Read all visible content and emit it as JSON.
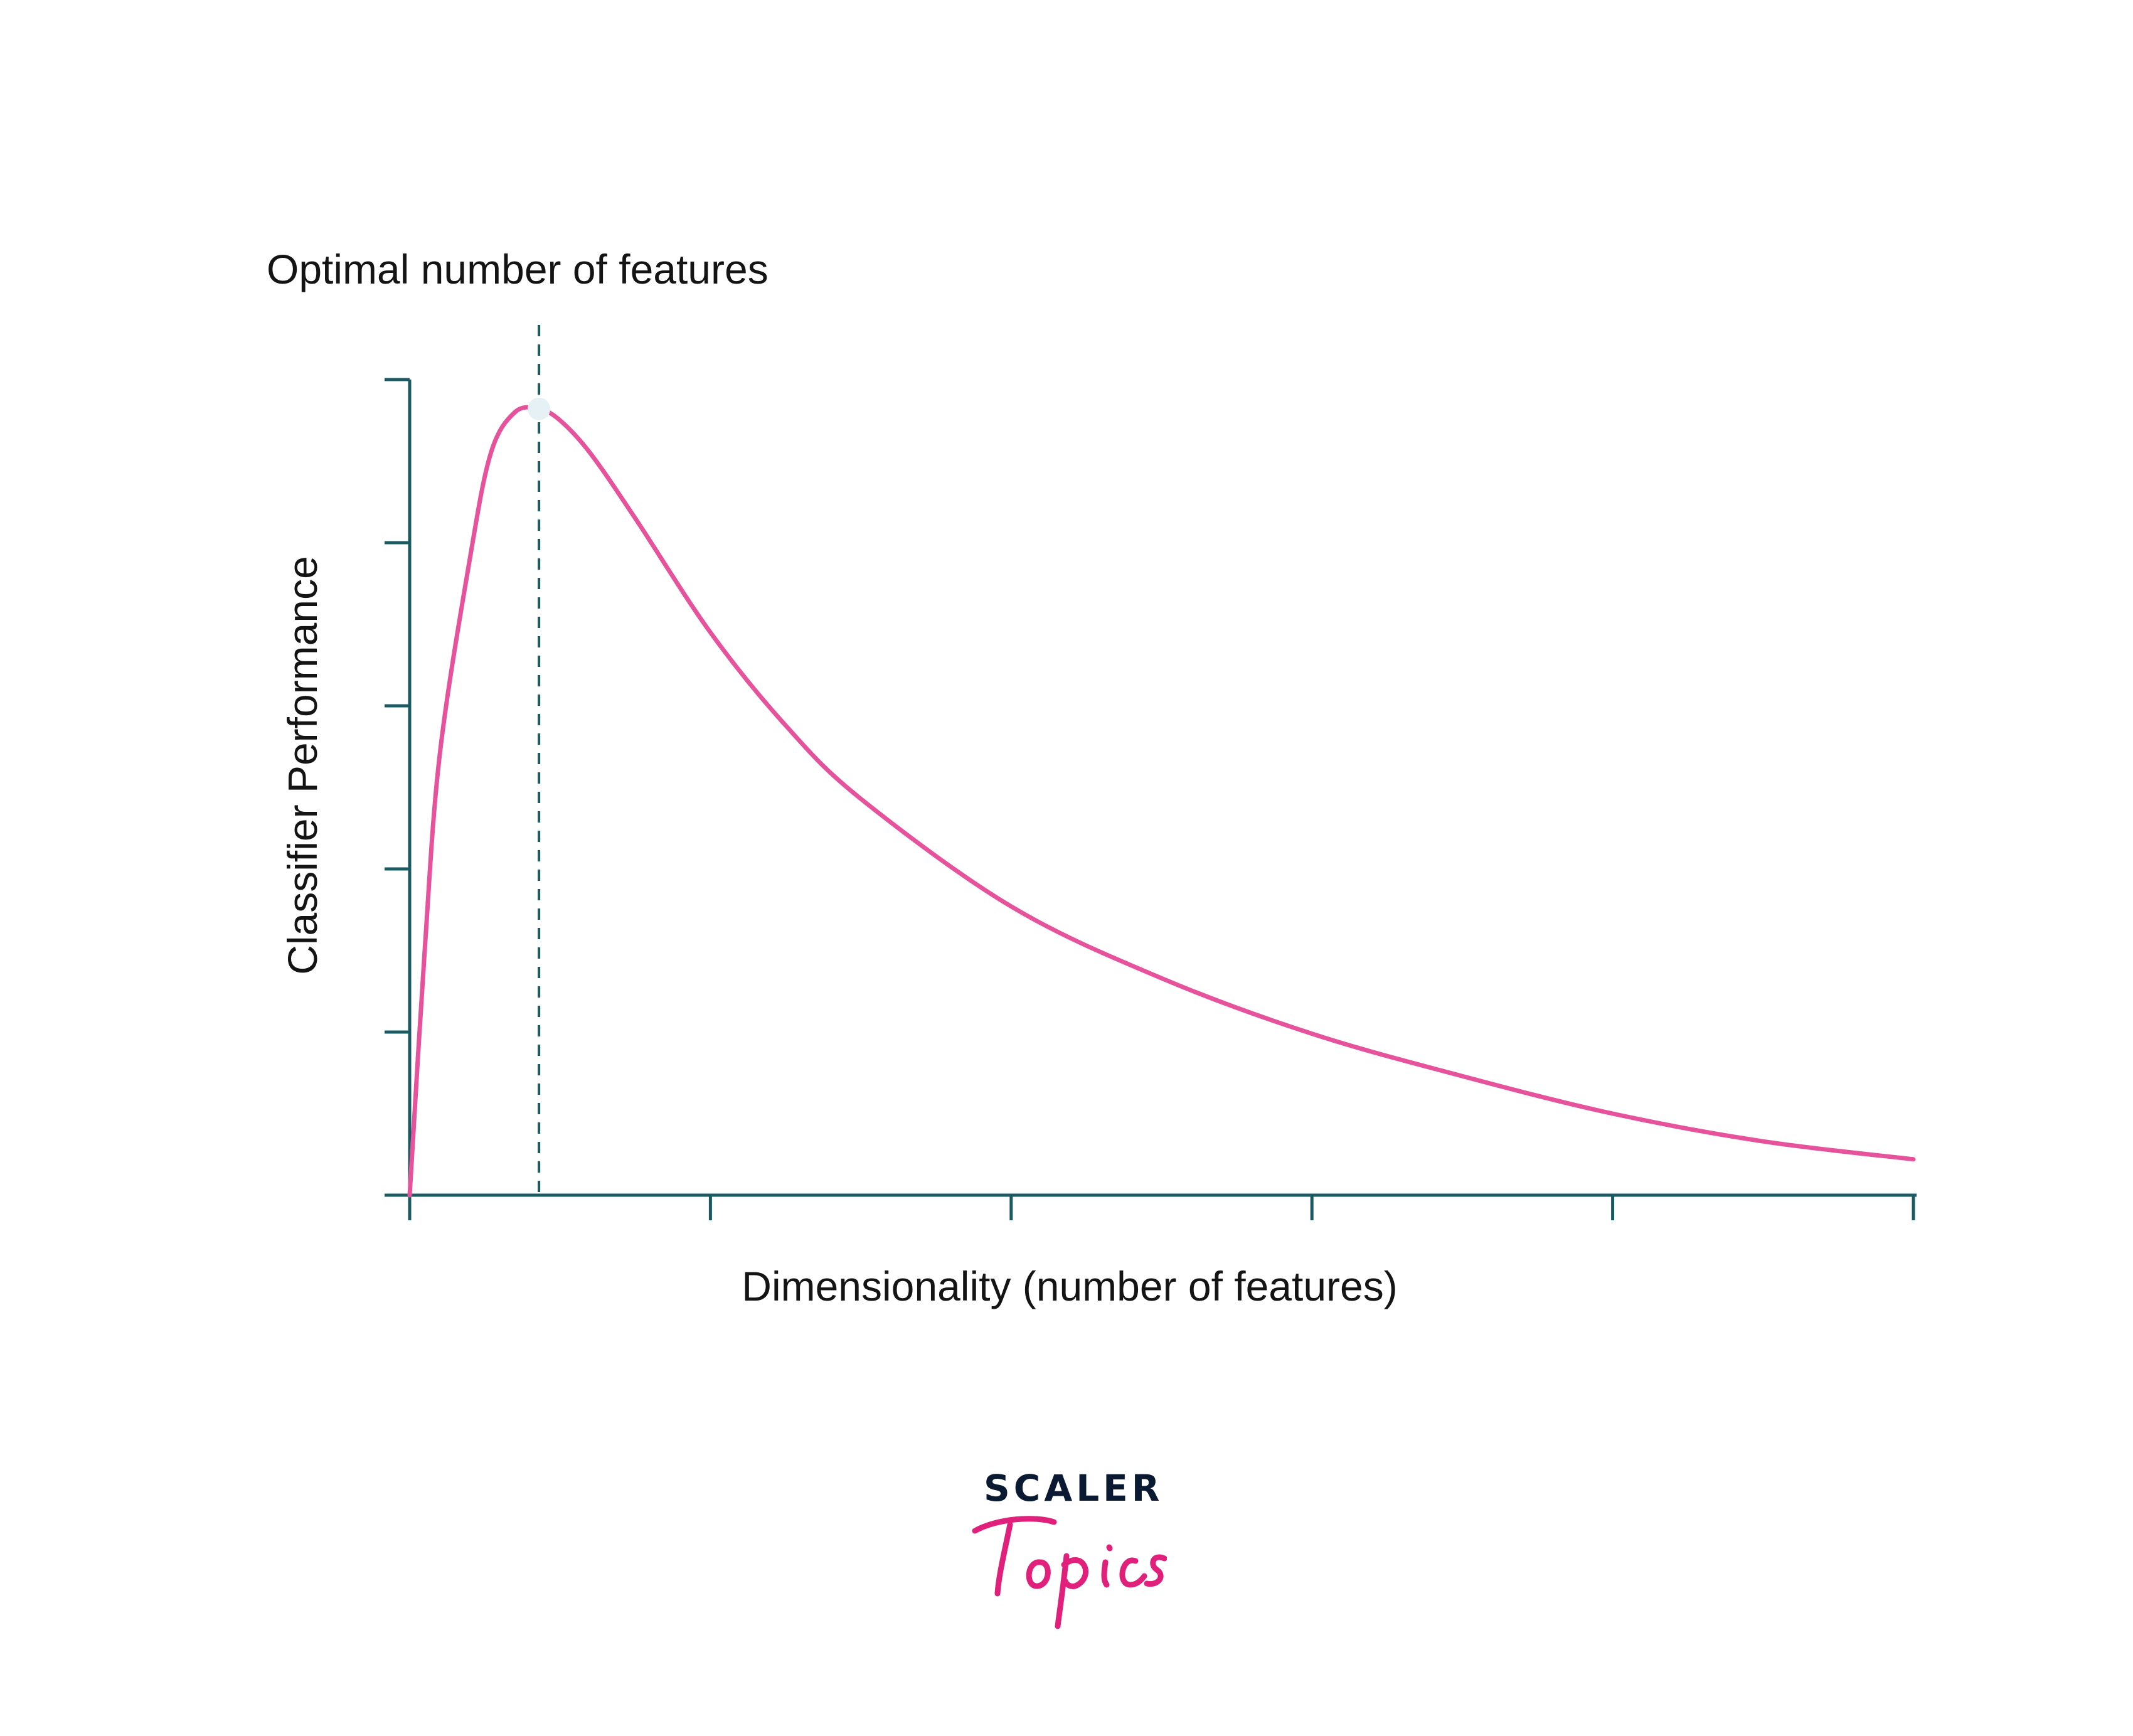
{
  "colors": {
    "axis": "#1a5b63",
    "curve": "#e6529c",
    "dashed_line": "#1a5b63",
    "peak_marker": "#e5f1f4",
    "text": "#141414",
    "logo_dark": "#0b1a33",
    "logo_accent": "#e0207a"
  },
  "chart_data": {
    "type": "line",
    "title": "",
    "xlabel": "Dimensionality (number of features)",
    "ylabel": "Classifier Performance",
    "xlim": [
      0,
      5
    ],
    "ylim": [
      0,
      5
    ],
    "xticks": [
      0,
      1,
      2,
      3,
      4,
      5
    ],
    "yticks": [
      0,
      1,
      2,
      3,
      4,
      5
    ],
    "tick_labels_shown": false,
    "grid": false,
    "annotation": {
      "text": "Optimal number of features",
      "x": 0.43,
      "style": "dashed vertical line with marker at curve peak"
    },
    "series": [
      {
        "x": [
          0.0,
          0.05,
          0.1,
          0.2,
          0.27,
          0.35,
          0.43,
          0.5,
          0.6,
          0.75,
          1.0,
          1.25,
          1.5,
          2.0,
          2.5,
          3.0,
          3.5,
          4.0,
          4.5,
          5.0
        ],
        "y": [
          0.0,
          1.5,
          2.7,
          3.9,
          4.55,
          4.8,
          4.82,
          4.75,
          4.55,
          4.15,
          3.45,
          2.88,
          2.43,
          1.77,
          1.33,
          0.99,
          0.73,
          0.5,
          0.33,
          0.22
        ]
      }
    ]
  },
  "logo": {
    "word_top": "SCALER",
    "word_bottom": "Topics"
  }
}
